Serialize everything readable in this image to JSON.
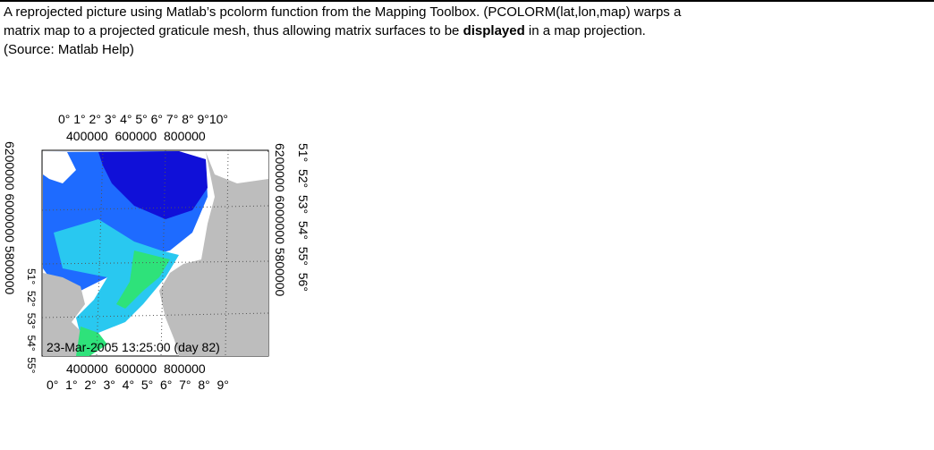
{
  "caption": {
    "line1": "A reprojected picture using Matlab’s pcolorm function from the Mapping Toolbox. (PCOLORM(lat,lon,map) warps a",
    "line2_before": "matrix map to a projected graticule mesh, thus allowing matrix surfaces to be ",
    "line2_bold": "displayed",
    "line2_after": " in a map projection.",
    "source": "(Source: Matlab Help)"
  },
  "figure": {
    "top_degrees": "0° 1° 2° 3° 4° 5° 6° 7° 8° 9°10°",
    "top_meters": "400000  600000  800000",
    "bottom_meters": "400000  600000  800000",
    "bottom_degrees": "0°  1°  2°  3°  4°  5°  6°  7°  8°  9°",
    "left_meters": "6200000 6000000 5800000",
    "left_degrees": "51°  52°  53°  54°  55°",
    "right_meters": "6200000 6000000 5800000",
    "right_degrees": "51°  52°  53°  54°  55°  56°",
    "timestamp": "23-Mar-2005 13:25:00 (day 82)"
  }
}
